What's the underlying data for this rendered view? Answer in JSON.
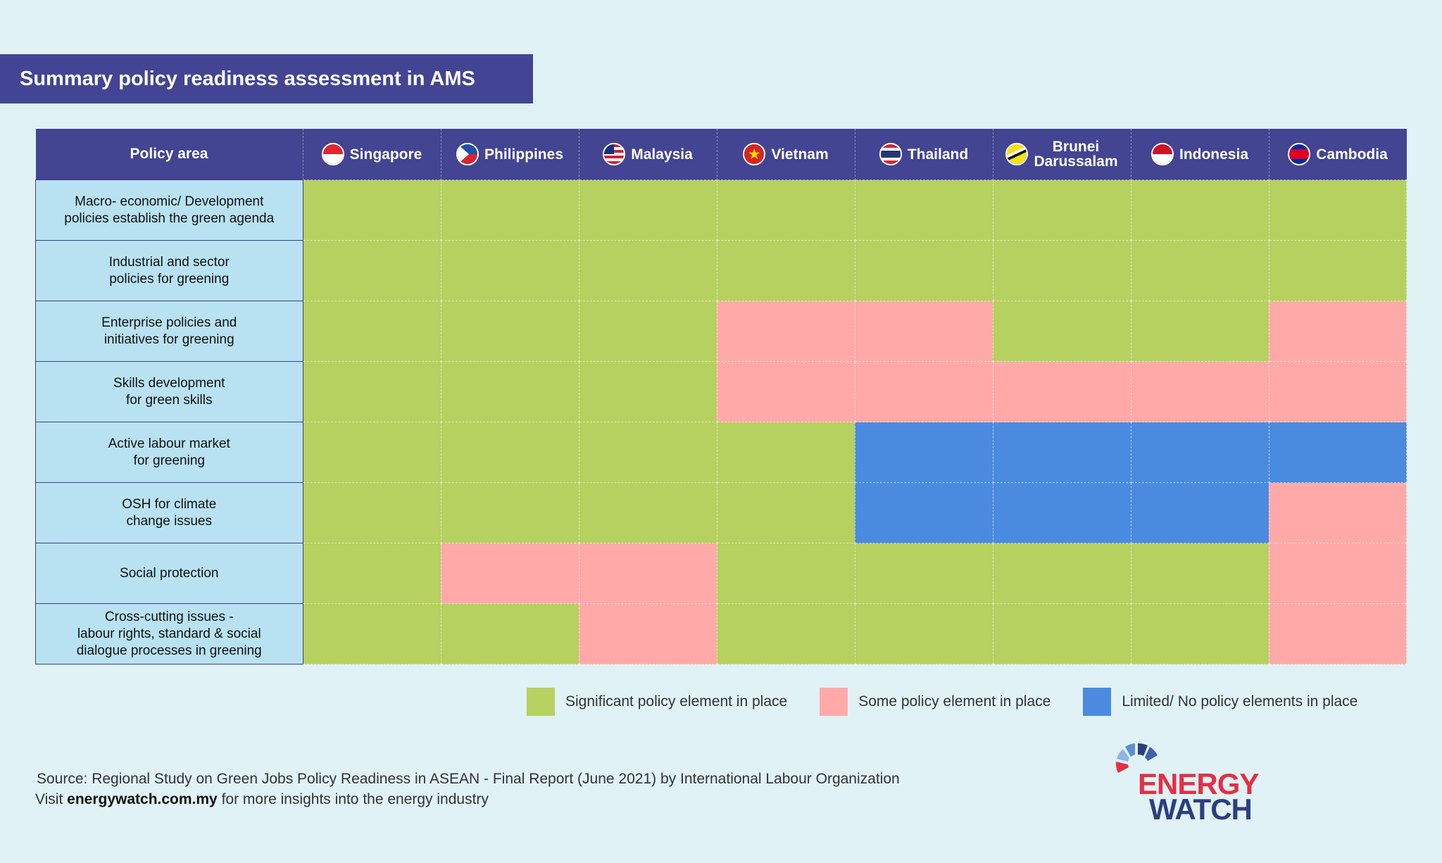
{
  "title": "Summary policy readiness assessment in AMS",
  "chart_data": {
    "type": "table",
    "header_first": "Policy area",
    "columns": [
      "Singapore",
      "Philippines",
      "Malaysia",
      "Vietnam",
      "Thailand",
      "Brunei Darussalam",
      "Indonesia",
      "Cambodia"
    ],
    "columns_display": [
      [
        "Singapore"
      ],
      [
        "Philippines"
      ],
      [
        "Malaysia"
      ],
      [
        "Vietnam"
      ],
      [
        "Thailand"
      ],
      [
        "Brunei",
        "Darussalam"
      ],
      [
        "Indonesia"
      ],
      [
        "Cambodia"
      ]
    ],
    "flag_icons": [
      "singapore-flag-icon",
      "philippines-flag-icon",
      "malaysia-flag-icon",
      "vietnam-flag-icon",
      "thailand-flag-icon",
      "brunei-flag-icon",
      "indonesia-flag-icon",
      "cambodia-flag-icon"
    ],
    "rows": [
      {
        "label_lines": [
          "Macro- economic/ Development",
          "policies establish the green agenda"
        ],
        "values": [
          "S",
          "S",
          "S",
          "S",
          "S",
          "S",
          "S",
          "S"
        ]
      },
      {
        "label_lines": [
          "Industrial and sector",
          "policies for greening"
        ],
        "values": [
          "S",
          "S",
          "S",
          "S",
          "S",
          "S",
          "S",
          "S"
        ]
      },
      {
        "label_lines": [
          "Enterprise policies and",
          "initiatives for greening"
        ],
        "values": [
          "S",
          "S",
          "S",
          "P",
          "P",
          "S",
          "S",
          "P"
        ]
      },
      {
        "label_lines": [
          "Skills development",
          "for green skills"
        ],
        "values": [
          "S",
          "S",
          "S",
          "P",
          "P",
          "P",
          "P",
          "P"
        ]
      },
      {
        "label_lines": [
          "Active labour market",
          "for greening"
        ],
        "values": [
          "S",
          "S",
          "S",
          "S",
          "L",
          "L",
          "L",
          "L"
        ]
      },
      {
        "label_lines": [
          "OSH for climate",
          "change issues"
        ],
        "values": [
          "S",
          "S",
          "S",
          "S",
          "L",
          "L",
          "L",
          "P"
        ]
      },
      {
        "label_lines": [
          "Social protection"
        ],
        "values": [
          "S",
          "P",
          "P",
          "S",
          "S",
          "S",
          "S",
          "P"
        ]
      },
      {
        "label_lines": [
          "Cross-cutting issues -",
          "labour rights, standard & social",
          "dialogue processes in greening"
        ],
        "values": [
          "S",
          "S",
          "P",
          "S",
          "S",
          "S",
          "S",
          "P"
        ]
      }
    ],
    "categories_legend": [
      {
        "key": "S",
        "label": "Significant policy element in place",
        "color": "#b6d160"
      },
      {
        "key": "P",
        "label": "Some policy element in place",
        "color": "#ffaaa9"
      },
      {
        "key": "L",
        "label": "Limited/ No policy elements in place",
        "color": "#4a8be0"
      }
    ],
    "legend_position": "bottom-right"
  },
  "footer": {
    "source": "Source: Regional Study on Green Jobs Policy Readiness in ASEAN - Final Report (June 2021) by International Labour Organization",
    "visit_prefix": "Visit ",
    "visit_link": "energywatch.com.my",
    "visit_suffix": " for more insights into the energy industry"
  },
  "logo": {
    "line1": "ENERGY",
    "line2": "WATCH"
  },
  "colors": {
    "header": "#434492",
    "area_bg": "#b8e2f2",
    "page_bg": "#e0f2f5"
  }
}
